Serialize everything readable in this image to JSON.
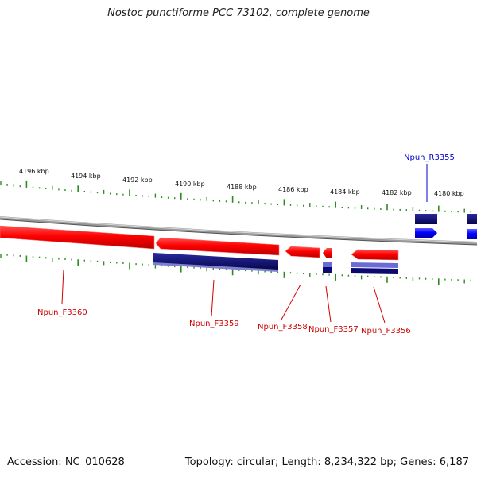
{
  "title": "Nostoc punctiforme PCC 73102, complete genome",
  "accession": "Accession: NC_010628",
  "topology": "Topology: circular; Length: 8,234,322 bp; Genes: 6,187",
  "scale_labels": [
    "4196 kbp",
    "4194 kbp",
    "4192 kbp",
    "4190 kbp",
    "4188 kbp",
    "4186 kbp",
    "4184 kbp",
    "4182 kbp",
    "4180 kbp"
  ],
  "genes": [
    {
      "name": "Npun_F3360",
      "strand": "forward",
      "color": "#cc0000"
    },
    {
      "name": "Npun_F3359",
      "strand": "forward",
      "color": "#cc0000"
    },
    {
      "name": "Npun_F3358",
      "strand": "forward",
      "color": "#cc0000"
    },
    {
      "name": "Npun_F3357",
      "strand": "forward",
      "color": "#cc0000"
    },
    {
      "name": "Npun_F3356",
      "strand": "forward",
      "color": "#cc0000"
    },
    {
      "name": "Npun_R3355",
      "strand": "reverse",
      "color": "#0000cc"
    }
  ],
  "colors": {
    "forward_feature": "#ff0000",
    "reverse_feature": "#0000ff",
    "cds_track": "#0a0a80",
    "backbone": "#888888",
    "ticks": "#2e8b22"
  }
}
